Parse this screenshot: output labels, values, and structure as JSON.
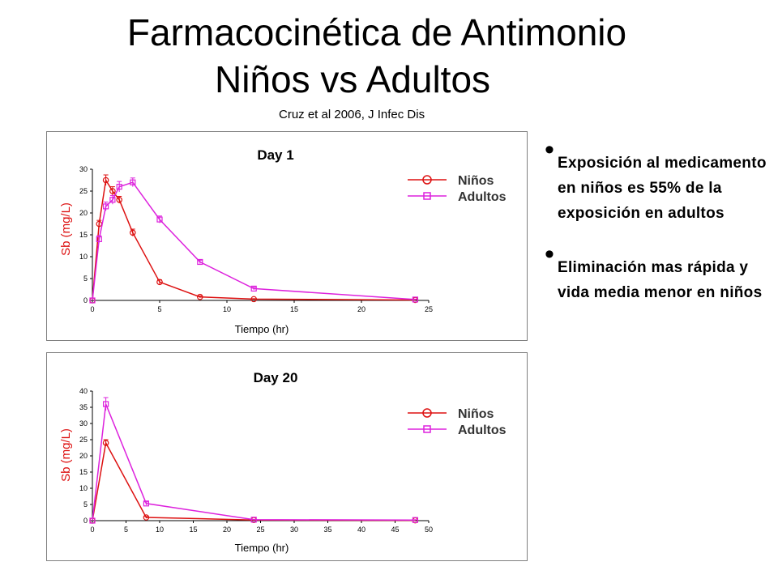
{
  "slide": {
    "title_line1": "Farmacocinética de  Antimonio",
    "title_line2": "Niños vs Adultos",
    "citation": "Cruz et al 2006, J Infec Dis",
    "bullets": [
      {
        "text": " Exposición al medicamento en niños es  55% de la exposición en adultos"
      },
      {
        "text": " Eliminación mas rápida y vida media menor en niños"
      }
    ]
  },
  "colors": {
    "ninos": "#dd1111",
    "adultos": "#dd22dd"
  },
  "chart_data": [
    {
      "type": "line",
      "title": "Day 1",
      "xlabel": "Tiempo (hr)",
      "ylabel": "Sb (mg/L)",
      "xlim": [
        0,
        25
      ],
      "ylim": [
        0,
        30
      ],
      "xticks": [
        0,
        5,
        10,
        15,
        20,
        25
      ],
      "yticks": [
        0,
        5,
        10,
        15,
        20,
        25,
        30
      ],
      "legend_position": "top-right",
      "series": [
        {
          "name": "Niños",
          "x": [
            0,
            0.5,
            1,
            1.5,
            2,
            3,
            5,
            8,
            12,
            24
          ],
          "y": [
            0,
            17.5,
            27.5,
            25,
            23,
            15.5,
            4.2,
            0.8,
            0.3,
            0.1
          ],
          "err": [
            0,
            0.8,
            1.2,
            1.0,
            0.8,
            0.8,
            0.5,
            0.2,
            0.1,
            0.1
          ]
        },
        {
          "name": "Adultos",
          "x": [
            0,
            0.5,
            1,
            1.5,
            2,
            3,
            5,
            8,
            12,
            24
          ],
          "y": [
            0,
            14,
            21.5,
            23,
            26,
            27,
            18.5,
            8.8,
            2.7,
            0.2
          ],
          "err": [
            0,
            0.8,
            1.0,
            1.0,
            1.2,
            1.0,
            0.8,
            0.4,
            0.3,
            0.1
          ]
        }
      ]
    },
    {
      "type": "line",
      "title": "Day 20",
      "xlabel": "Tiempo (hr)",
      "ylabel": "Sb (mg/L)",
      "xlim": [
        0,
        50
      ],
      "ylim": [
        0,
        40
      ],
      "xticks": [
        0,
        5,
        10,
        15,
        20,
        25,
        30,
        35,
        40,
        45,
        50
      ],
      "yticks": [
        0,
        5,
        10,
        15,
        20,
        25,
        30,
        35,
        40
      ],
      "legend_position": "top-right",
      "series": [
        {
          "name": "Niños",
          "x": [
            0,
            2,
            8,
            24,
            48
          ],
          "y": [
            0,
            24,
            1,
            0.2,
            0.1
          ],
          "err": [
            0,
            1.0,
            0.3,
            0.1,
            0.1
          ]
        },
        {
          "name": "Adultos",
          "x": [
            0,
            2,
            8,
            24,
            48
          ],
          "y": [
            0,
            36,
            5.3,
            0.3,
            0.2
          ],
          "err": [
            0,
            2.0,
            0.5,
            0.1,
            0.1
          ]
        }
      ]
    }
  ]
}
